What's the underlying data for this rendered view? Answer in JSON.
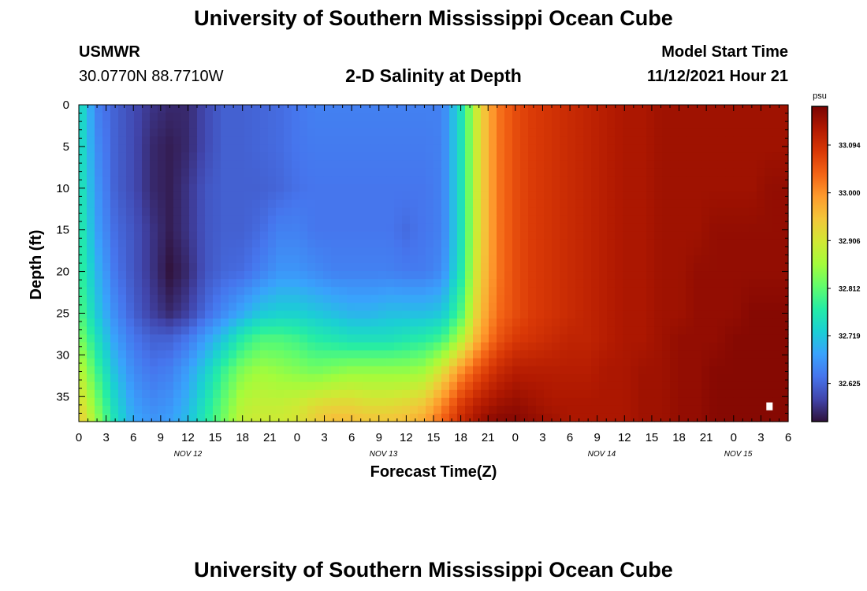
{
  "header": {
    "title": "University of Southern Mississippi Ocean Cube",
    "station": "USMWR",
    "coords": "30.0770N  88.7710W",
    "subtitle": "2-D Salinity at Depth",
    "model_start_label": "Model Start Time",
    "model_start_value": "11/12/2021 Hour 21"
  },
  "footer": {
    "title": "University of Southern Mississippi Ocean Cube"
  },
  "chart_data": {
    "type": "heatmap",
    "title": "2-D Salinity at Depth",
    "xlabel": "Forecast Time(Z)",
    "ylabel": "Depth (ft)",
    "x_range_hours": [
      0,
      78
    ],
    "y_range_ft": [
      0,
      38
    ],
    "x_tick_labels": [
      "0",
      "3",
      "6",
      "9",
      "12",
      "15",
      "18",
      "21",
      "0",
      "3",
      "6",
      "9",
      "12",
      "15",
      "18",
      "21",
      "0",
      "3",
      "6",
      "9",
      "12",
      "15",
      "18",
      "21",
      "0",
      "3",
      "6"
    ],
    "y_ticks": [
      0,
      5,
      10,
      15,
      20,
      25,
      30,
      35
    ],
    "day_labels": [
      {
        "text": "NOV 12",
        "hour": 12
      },
      {
        "text": "NOV 13",
        "hour": 33.5
      },
      {
        "text": "NOV 14",
        "hour": 57.5
      },
      {
        "text": "NOV 15",
        "hour": 72.5
      }
    ],
    "colorbar": {
      "unit": "psu",
      "min": 32.55,
      "max": 33.17,
      "tick_labels": [
        "33.094",
        "33.000",
        "32.906",
        "32.812",
        "32.719",
        "32.625"
      ],
      "colors": [
        "#30123b",
        "#4145ab",
        "#4675ed",
        "#39a2fc",
        "#1bcfd4",
        "#24eca6",
        "#61fc6c",
        "#a4fc3b",
        "#d1e834",
        "#f3c63a",
        "#fe9b2d",
        "#f36315",
        "#d93806",
        "#b11901",
        "#7a0402"
      ]
    },
    "salinity_grid": {
      "times_hours": [
        0,
        2,
        4,
        6,
        8,
        10,
        12,
        14,
        16,
        18,
        20,
        22,
        24,
        26,
        28,
        30,
        32,
        34,
        36,
        38,
        40,
        42,
        44,
        46,
        48,
        50,
        52,
        54,
        56,
        58,
        60,
        62,
        64,
        66,
        68,
        70,
        72,
        74,
        76,
        78
      ],
      "depths_ft": [
        0,
        5,
        10,
        15,
        20,
        25,
        28,
        32,
        36,
        38
      ],
      "values_psu": [
        [
          32.76,
          32.65,
          32.62,
          32.6,
          32.58,
          32.57,
          32.57,
          32.6,
          32.62,
          32.62,
          32.625,
          32.63,
          32.64,
          32.65,
          32.65,
          32.65,
          32.65,
          32.65,
          32.65,
          32.65,
          32.65,
          32.75,
          32.92,
          33.02,
          33.06,
          33.08,
          33.09,
          33.1,
          33.11,
          33.12,
          33.13,
          33.13,
          33.14,
          33.14,
          33.14,
          33.14,
          33.14,
          33.14,
          33.14,
          33.14
        ],
        [
          32.76,
          32.66,
          32.62,
          32.6,
          32.57,
          32.56,
          32.57,
          32.6,
          32.62,
          32.62,
          32.625,
          32.63,
          32.64,
          32.645,
          32.645,
          32.645,
          32.645,
          32.645,
          32.645,
          32.645,
          32.65,
          32.75,
          32.92,
          33.02,
          33.06,
          33.08,
          33.09,
          33.1,
          33.11,
          33.12,
          33.13,
          33.13,
          33.14,
          33.14,
          33.14,
          33.14,
          33.14,
          33.14,
          33.14,
          33.14
        ],
        [
          32.77,
          32.67,
          32.62,
          32.6,
          32.57,
          32.56,
          32.58,
          32.61,
          32.62,
          32.62,
          32.62,
          32.625,
          32.635,
          32.64,
          32.64,
          32.64,
          32.64,
          32.64,
          32.64,
          32.64,
          32.65,
          32.75,
          32.92,
          33.02,
          33.06,
          33.08,
          33.09,
          33.1,
          33.11,
          33.12,
          33.13,
          33.13,
          33.14,
          33.14,
          33.14,
          33.14,
          33.14,
          33.14,
          33.15,
          33.15
        ],
        [
          32.78,
          32.68,
          32.63,
          32.61,
          32.58,
          32.56,
          32.58,
          32.61,
          32.62,
          32.62,
          32.63,
          32.65,
          32.65,
          32.64,
          32.64,
          32.64,
          32.64,
          32.64,
          32.63,
          32.64,
          32.65,
          32.75,
          32.92,
          33.02,
          33.06,
          33.08,
          33.09,
          33.1,
          33.11,
          33.12,
          33.13,
          33.13,
          33.14,
          33.14,
          33.14,
          33.15,
          33.15,
          33.15,
          33.15,
          33.15
        ],
        [
          32.79,
          32.7,
          32.64,
          32.61,
          32.58,
          32.55,
          32.57,
          32.61,
          32.625,
          32.63,
          32.65,
          32.67,
          32.67,
          32.66,
          32.65,
          32.65,
          32.65,
          32.65,
          32.645,
          32.645,
          32.66,
          32.76,
          32.93,
          33.02,
          33.06,
          33.08,
          33.09,
          33.1,
          33.11,
          33.12,
          33.13,
          33.13,
          33.14,
          33.14,
          33.15,
          33.15,
          33.15,
          33.15,
          33.15,
          33.15
        ],
        [
          32.81,
          32.72,
          32.66,
          32.62,
          32.59,
          32.57,
          32.59,
          32.63,
          32.66,
          32.69,
          32.72,
          32.73,
          32.73,
          32.72,
          32.71,
          32.7,
          32.7,
          32.71,
          32.71,
          32.71,
          32.72,
          32.8,
          32.95,
          33.03,
          33.06,
          33.08,
          33.09,
          33.1,
          33.11,
          33.12,
          33.13,
          33.13,
          33.14,
          33.14,
          33.15,
          33.15,
          33.15,
          33.16,
          33.16,
          33.16
        ],
        [
          32.84,
          32.75,
          32.68,
          32.64,
          32.62,
          32.62,
          32.64,
          32.68,
          32.72,
          32.77,
          32.8,
          32.8,
          32.79,
          32.77,
          32.76,
          32.75,
          32.75,
          32.75,
          32.76,
          32.77,
          32.79,
          32.87,
          32.98,
          33.05,
          33.08,
          33.09,
          33.1,
          33.11,
          33.11,
          33.12,
          33.13,
          33.13,
          33.14,
          33.15,
          33.15,
          33.15,
          33.16,
          33.16,
          33.16,
          33.16
        ],
        [
          32.89,
          32.79,
          32.71,
          32.66,
          32.64,
          32.65,
          32.68,
          32.73,
          32.79,
          32.84,
          32.86,
          32.85,
          32.84,
          32.83,
          32.84,
          32.85,
          32.85,
          32.85,
          32.85,
          32.86,
          32.92,
          33.0,
          33.06,
          33.1,
          33.12,
          33.12,
          33.12,
          33.12,
          33.12,
          33.13,
          33.13,
          33.14,
          33.14,
          33.15,
          33.15,
          33.16,
          33.16,
          33.16,
          33.16,
          33.16
        ],
        [
          32.93,
          32.83,
          32.74,
          32.68,
          32.66,
          32.67,
          32.7,
          32.76,
          32.82,
          32.88,
          32.89,
          32.89,
          32.9,
          32.92,
          32.93,
          32.93,
          32.92,
          32.92,
          32.93,
          32.95,
          33.01,
          33.08,
          33.12,
          33.14,
          33.15,
          33.14,
          33.13,
          33.13,
          33.13,
          33.13,
          33.13,
          33.14,
          33.14,
          33.15,
          33.15,
          33.16,
          33.16,
          33.16,
          33.16,
          33.16
        ],
        [
          32.95,
          32.85,
          32.75,
          32.69,
          32.67,
          32.68,
          32.71,
          32.77,
          32.83,
          32.89,
          32.9,
          32.9,
          32.91,
          32.94,
          32.96,
          32.96,
          32.95,
          32.95,
          32.96,
          32.98,
          33.04,
          33.1,
          33.14,
          33.16,
          33.16,
          33.15,
          33.14,
          33.13,
          33.13,
          33.13,
          33.13,
          33.14,
          33.14,
          33.15,
          33.15,
          33.16,
          33.16,
          33.16,
          33.16,
          33.16
        ]
      ]
    }
  }
}
